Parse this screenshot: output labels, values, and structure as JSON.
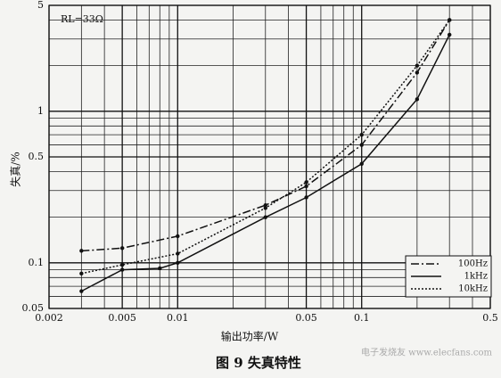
{
  "chart_data": {
    "type": "line",
    "annotation": "RL=33Ω",
    "ylabel": "失真/%",
    "xlabel": "输出功率/W",
    "caption": "图 9  失真特性",
    "watermark": "电子发烧友 www.elecfans.com",
    "log_x": true,
    "log_y": true,
    "grid": true,
    "legend": "lower right",
    "xlim": [
      0.002,
      0.5
    ],
    "ylim": [
      0.05,
      5
    ],
    "xticks": [
      0.002,
      0.005,
      0.01,
      0.05,
      0.1,
      0.5
    ],
    "yticks": [
      0.05,
      0.1,
      0.5,
      1,
      5
    ],
    "minor_xticks": [
      0.003,
      0.004,
      0.006,
      0.007,
      0.008,
      0.009,
      0.02,
      0.03,
      0.04,
      0.06,
      0.07,
      0.08,
      0.09,
      0.2,
      0.3,
      0.4
    ],
    "minor_yticks": [
      0.06,
      0.07,
      0.08,
      0.09,
      0.2,
      0.3,
      0.4,
      0.6,
      0.7,
      0.8,
      0.9,
      2,
      3,
      4
    ],
    "series": [
      {
        "name": "100Hz",
        "color": "#111111",
        "dash": "9,3,2,3",
        "x": [
          0.003,
          0.005,
          0.01,
          0.03,
          0.05,
          0.1,
          0.2,
          0.3
        ],
        "values": [
          0.12,
          0.125,
          0.15,
          0.24,
          0.32,
          0.6,
          1.8,
          4.0
        ]
      },
      {
        "name": "1kHz",
        "color": "#111111",
        "dash": "none",
        "x": [
          0.003,
          0.005,
          0.008,
          0.01,
          0.03,
          0.05,
          0.1,
          0.2,
          0.3
        ],
        "values": [
          0.065,
          0.09,
          0.092,
          0.1,
          0.2,
          0.27,
          0.45,
          1.2,
          3.2
        ]
      },
      {
        "name": "10kHz",
        "color": "#111111",
        "dash": "2,2",
        "x": [
          0.003,
          0.005,
          0.01,
          0.03,
          0.05,
          0.1,
          0.2,
          0.3
        ],
        "values": [
          0.085,
          0.097,
          0.115,
          0.23,
          0.34,
          0.7,
          2.0,
          4.0
        ]
      }
    ]
  }
}
